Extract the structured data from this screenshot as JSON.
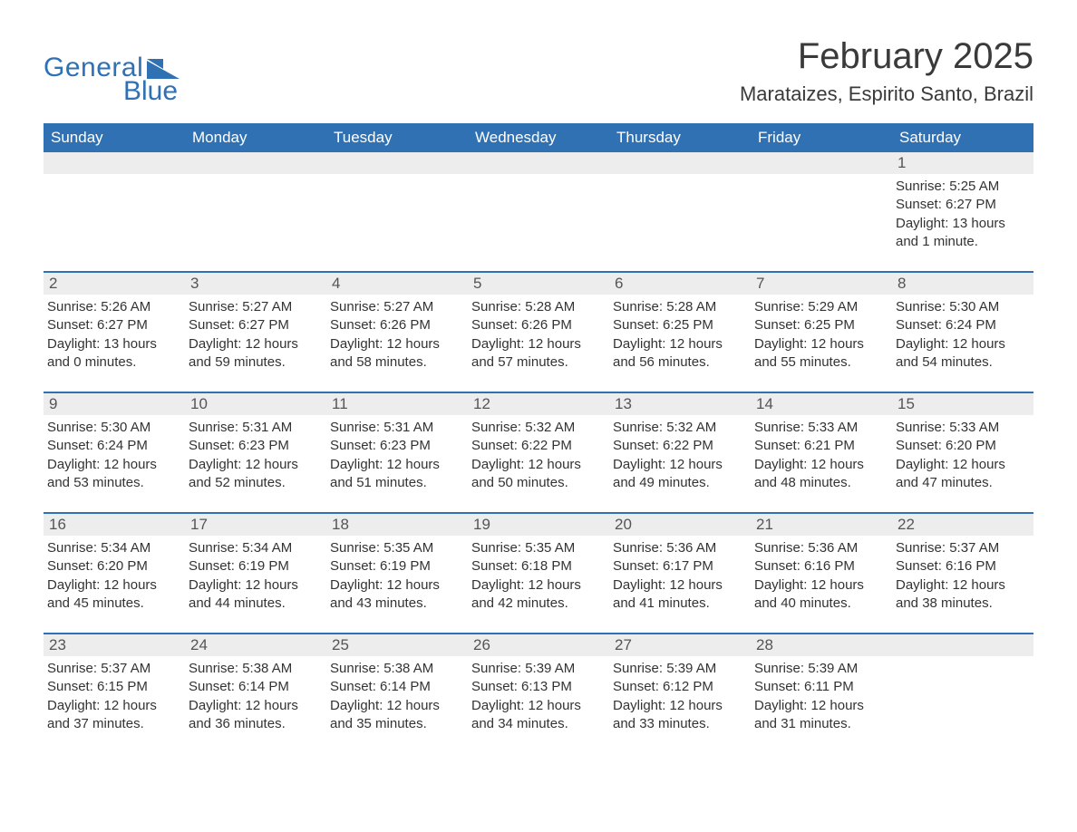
{
  "brand": {
    "general": "General",
    "blue": "Blue"
  },
  "title": "February 2025",
  "location": "Marataizes, Espirito Santo, Brazil",
  "colors": {
    "header_bg": "#2f71b3",
    "header_text": "#ffffff",
    "daynum_bg": "#ededed",
    "border": "#2f71b3",
    "page_bg": "#ffffff",
    "body_text": "#333333",
    "title_text": "#3a3a3a"
  },
  "weekdays": [
    "Sunday",
    "Monday",
    "Tuesday",
    "Wednesday",
    "Thursday",
    "Friday",
    "Saturday"
  ],
  "weeks": [
    [
      {
        "n": "",
        "sr": "",
        "ss": "",
        "d1": "",
        "d2": ""
      },
      {
        "n": "",
        "sr": "",
        "ss": "",
        "d1": "",
        "d2": ""
      },
      {
        "n": "",
        "sr": "",
        "ss": "",
        "d1": "",
        "d2": ""
      },
      {
        "n": "",
        "sr": "",
        "ss": "",
        "d1": "",
        "d2": ""
      },
      {
        "n": "",
        "sr": "",
        "ss": "",
        "d1": "",
        "d2": ""
      },
      {
        "n": "",
        "sr": "",
        "ss": "",
        "d1": "",
        "d2": ""
      },
      {
        "n": "1",
        "sr": "Sunrise: 5:25 AM",
        "ss": "Sunset: 6:27 PM",
        "d1": "Daylight: 13 hours",
        "d2": "and 1 minute."
      }
    ],
    [
      {
        "n": "2",
        "sr": "Sunrise: 5:26 AM",
        "ss": "Sunset: 6:27 PM",
        "d1": "Daylight: 13 hours",
        "d2": "and 0 minutes."
      },
      {
        "n": "3",
        "sr": "Sunrise: 5:27 AM",
        "ss": "Sunset: 6:27 PM",
        "d1": "Daylight: 12 hours",
        "d2": "and 59 minutes."
      },
      {
        "n": "4",
        "sr": "Sunrise: 5:27 AM",
        "ss": "Sunset: 6:26 PM",
        "d1": "Daylight: 12 hours",
        "d2": "and 58 minutes."
      },
      {
        "n": "5",
        "sr": "Sunrise: 5:28 AM",
        "ss": "Sunset: 6:26 PM",
        "d1": "Daylight: 12 hours",
        "d2": "and 57 minutes."
      },
      {
        "n": "6",
        "sr": "Sunrise: 5:28 AM",
        "ss": "Sunset: 6:25 PM",
        "d1": "Daylight: 12 hours",
        "d2": "and 56 minutes."
      },
      {
        "n": "7",
        "sr": "Sunrise: 5:29 AM",
        "ss": "Sunset: 6:25 PM",
        "d1": "Daylight: 12 hours",
        "d2": "and 55 minutes."
      },
      {
        "n": "8",
        "sr": "Sunrise: 5:30 AM",
        "ss": "Sunset: 6:24 PM",
        "d1": "Daylight: 12 hours",
        "d2": "and 54 minutes."
      }
    ],
    [
      {
        "n": "9",
        "sr": "Sunrise: 5:30 AM",
        "ss": "Sunset: 6:24 PM",
        "d1": "Daylight: 12 hours",
        "d2": "and 53 minutes."
      },
      {
        "n": "10",
        "sr": "Sunrise: 5:31 AM",
        "ss": "Sunset: 6:23 PM",
        "d1": "Daylight: 12 hours",
        "d2": "and 52 minutes."
      },
      {
        "n": "11",
        "sr": "Sunrise: 5:31 AM",
        "ss": "Sunset: 6:23 PM",
        "d1": "Daylight: 12 hours",
        "d2": "and 51 minutes."
      },
      {
        "n": "12",
        "sr": "Sunrise: 5:32 AM",
        "ss": "Sunset: 6:22 PM",
        "d1": "Daylight: 12 hours",
        "d2": "and 50 minutes."
      },
      {
        "n": "13",
        "sr": "Sunrise: 5:32 AM",
        "ss": "Sunset: 6:22 PM",
        "d1": "Daylight: 12 hours",
        "d2": "and 49 minutes."
      },
      {
        "n": "14",
        "sr": "Sunrise: 5:33 AM",
        "ss": "Sunset: 6:21 PM",
        "d1": "Daylight: 12 hours",
        "d2": "and 48 minutes."
      },
      {
        "n": "15",
        "sr": "Sunrise: 5:33 AM",
        "ss": "Sunset: 6:20 PM",
        "d1": "Daylight: 12 hours",
        "d2": "and 47 minutes."
      }
    ],
    [
      {
        "n": "16",
        "sr": "Sunrise: 5:34 AM",
        "ss": "Sunset: 6:20 PM",
        "d1": "Daylight: 12 hours",
        "d2": "and 45 minutes."
      },
      {
        "n": "17",
        "sr": "Sunrise: 5:34 AM",
        "ss": "Sunset: 6:19 PM",
        "d1": "Daylight: 12 hours",
        "d2": "and 44 minutes."
      },
      {
        "n": "18",
        "sr": "Sunrise: 5:35 AM",
        "ss": "Sunset: 6:19 PM",
        "d1": "Daylight: 12 hours",
        "d2": "and 43 minutes."
      },
      {
        "n": "19",
        "sr": "Sunrise: 5:35 AM",
        "ss": "Sunset: 6:18 PM",
        "d1": "Daylight: 12 hours",
        "d2": "and 42 minutes."
      },
      {
        "n": "20",
        "sr": "Sunrise: 5:36 AM",
        "ss": "Sunset: 6:17 PM",
        "d1": "Daylight: 12 hours",
        "d2": "and 41 minutes."
      },
      {
        "n": "21",
        "sr": "Sunrise: 5:36 AM",
        "ss": "Sunset: 6:16 PM",
        "d1": "Daylight: 12 hours",
        "d2": "and 40 minutes."
      },
      {
        "n": "22",
        "sr": "Sunrise: 5:37 AM",
        "ss": "Sunset: 6:16 PM",
        "d1": "Daylight: 12 hours",
        "d2": "and 38 minutes."
      }
    ],
    [
      {
        "n": "23",
        "sr": "Sunrise: 5:37 AM",
        "ss": "Sunset: 6:15 PM",
        "d1": "Daylight: 12 hours",
        "d2": "and 37 minutes."
      },
      {
        "n": "24",
        "sr": "Sunrise: 5:38 AM",
        "ss": "Sunset: 6:14 PM",
        "d1": "Daylight: 12 hours",
        "d2": "and 36 minutes."
      },
      {
        "n": "25",
        "sr": "Sunrise: 5:38 AM",
        "ss": "Sunset: 6:14 PM",
        "d1": "Daylight: 12 hours",
        "d2": "and 35 minutes."
      },
      {
        "n": "26",
        "sr": "Sunrise: 5:39 AM",
        "ss": "Sunset: 6:13 PM",
        "d1": "Daylight: 12 hours",
        "d2": "and 34 minutes."
      },
      {
        "n": "27",
        "sr": "Sunrise: 5:39 AM",
        "ss": "Sunset: 6:12 PM",
        "d1": "Daylight: 12 hours",
        "d2": "and 33 minutes."
      },
      {
        "n": "28",
        "sr": "Sunrise: 5:39 AM",
        "ss": "Sunset: 6:11 PM",
        "d1": "Daylight: 12 hours",
        "d2": "and 31 minutes."
      },
      {
        "n": "",
        "sr": "",
        "ss": "",
        "d1": "",
        "d2": ""
      }
    ]
  ]
}
